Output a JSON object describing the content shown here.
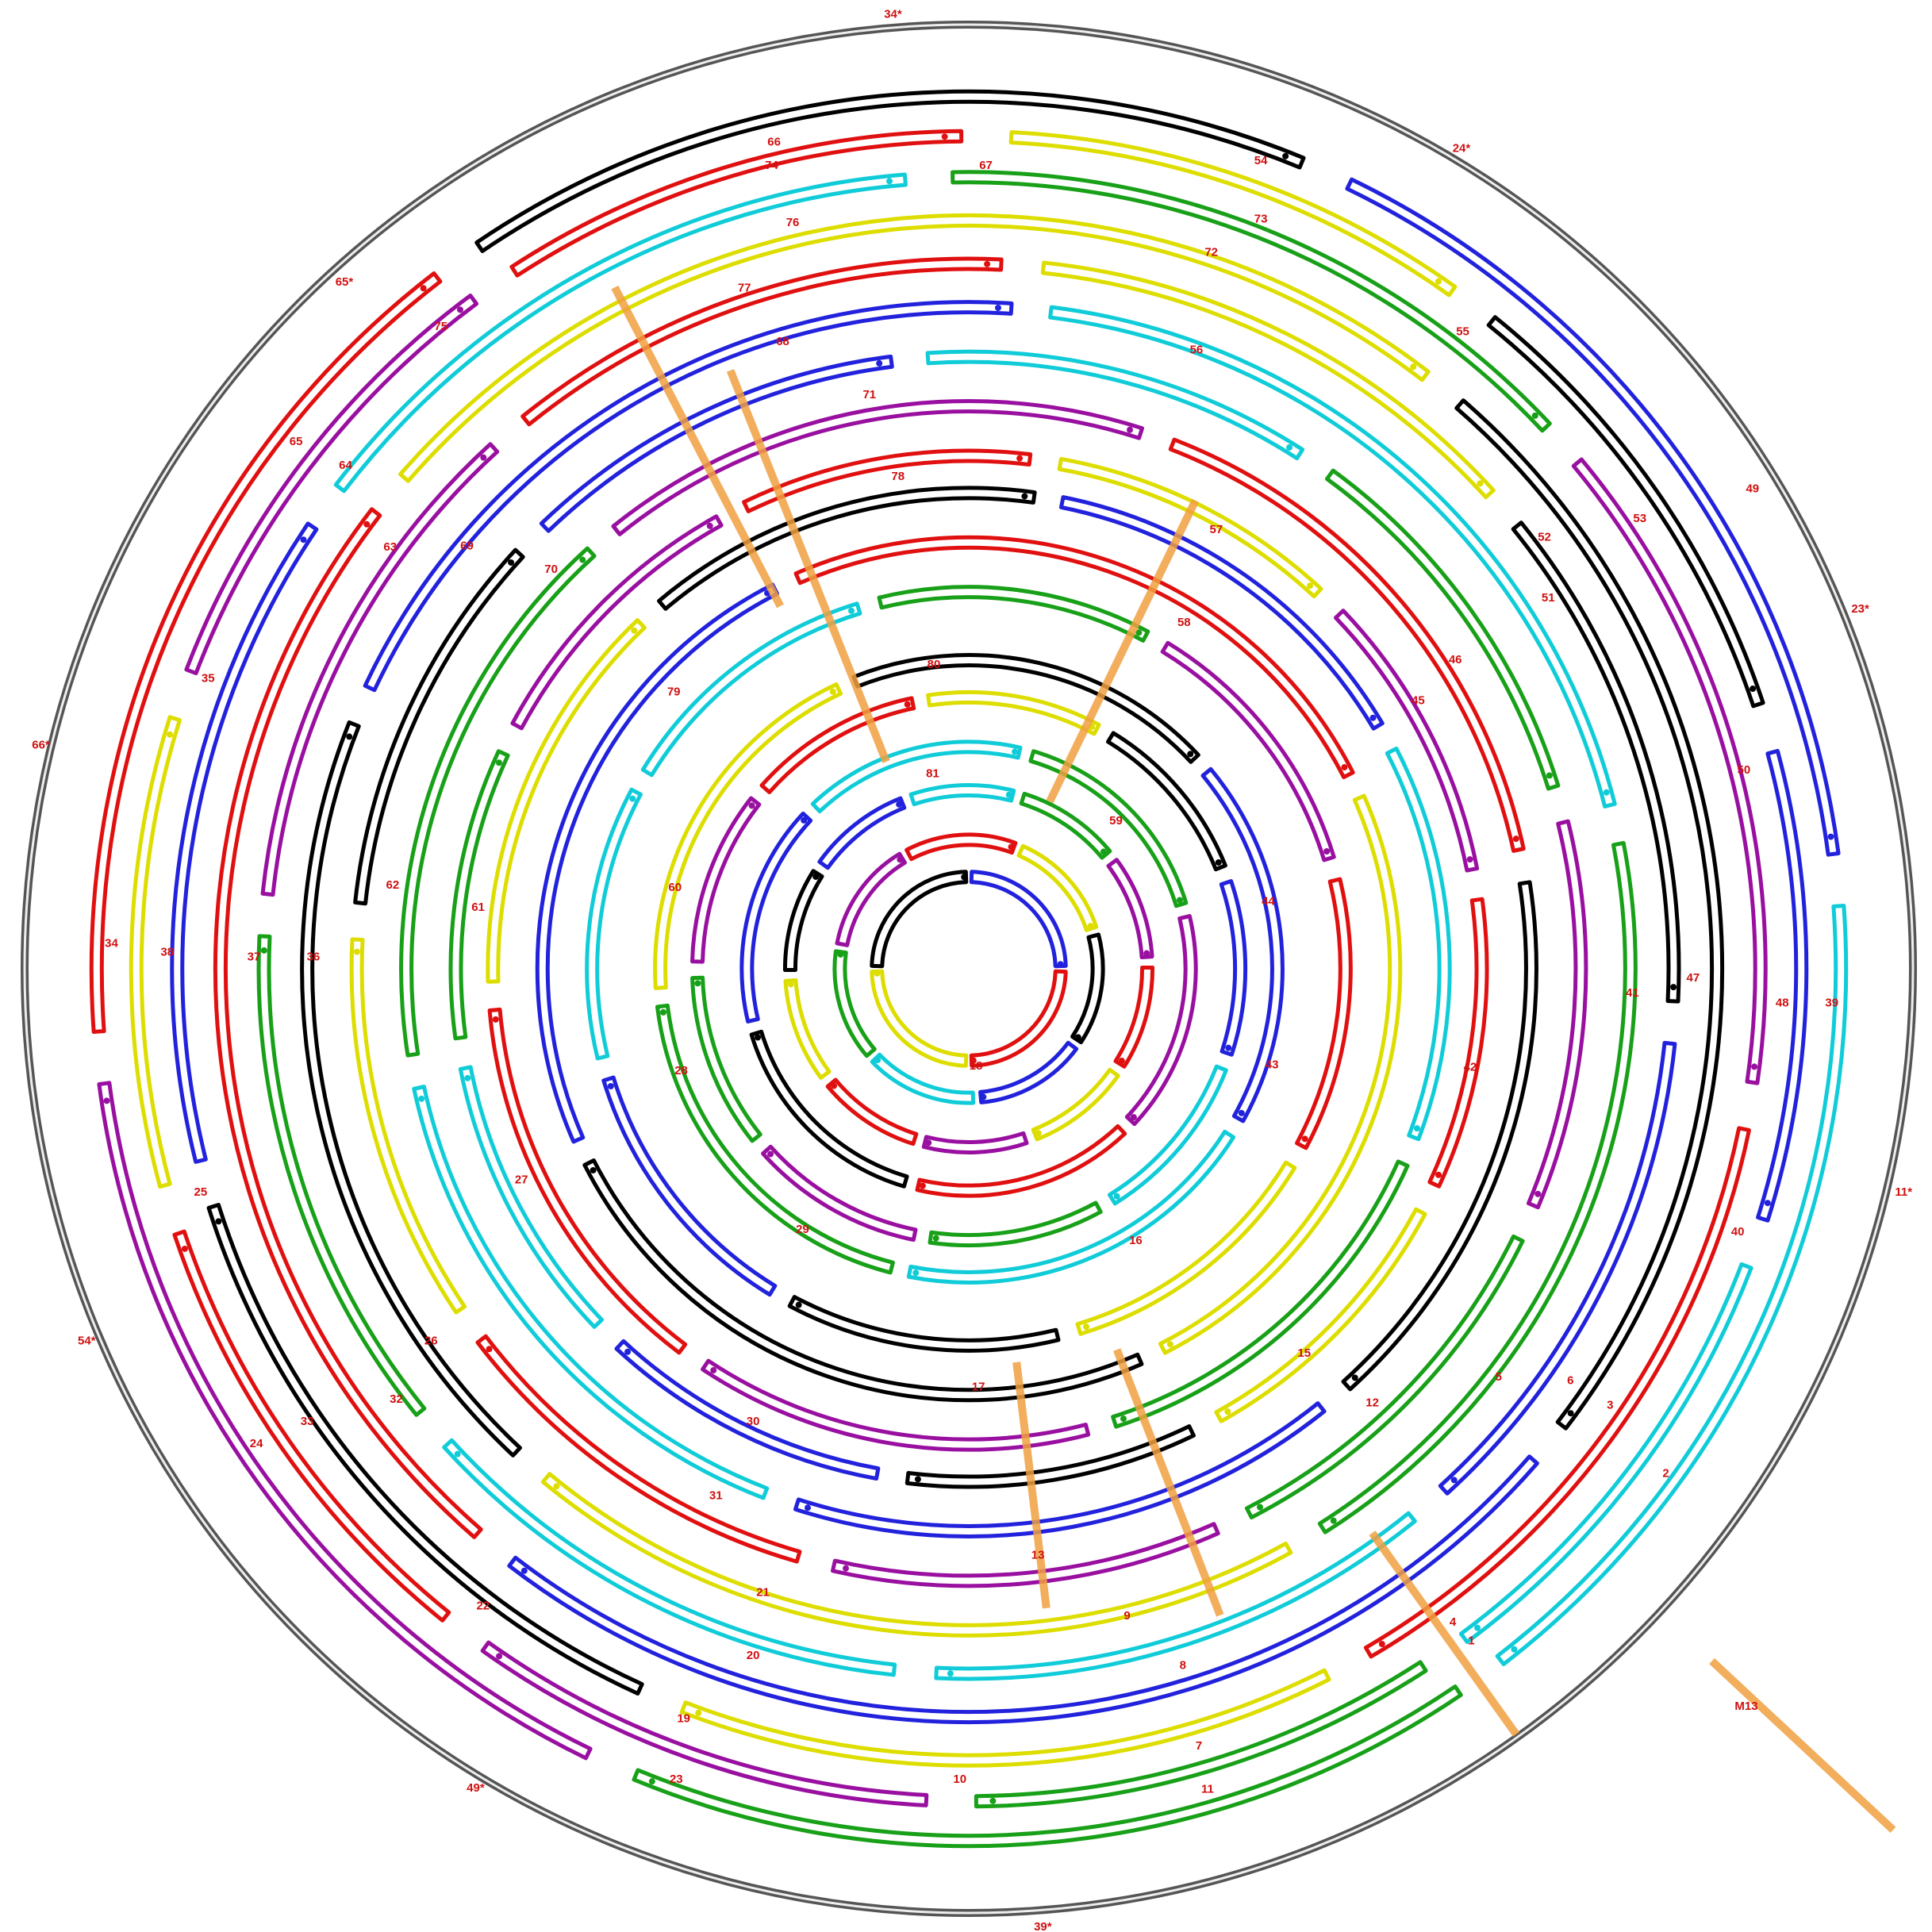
{
  "strands": [
    "1",
    "2",
    "3",
    "4",
    "5",
    "6",
    "7",
    "8",
    "9",
    "10",
    "11",
    "12",
    "13",
    "15",
    "16",
    "17",
    "18",
    "19",
    "20",
    "21",
    "22",
    "23",
    "24",
    "25",
    "26",
    "27",
    "28",
    "29",
    "30",
    "31",
    "32",
    "33",
    "34",
    "35",
    "36",
    "37",
    "38",
    "39",
    "40",
    "41",
    "42",
    "43",
    "44",
    "45",
    "46",
    "47",
    "48",
    "49",
    "50",
    "51",
    "52",
    "53",
    "54",
    "55",
    "56",
    "57",
    "58",
    "59",
    "60",
    "61",
    "62",
    "63",
    "64",
    "65",
    "66",
    "67",
    "68",
    "69",
    "70",
    "71",
    "72",
    "73",
    "74",
    "75",
    "76",
    "77",
    "78",
    "79",
    "80",
    "81"
  ],
  "crossovers": [
    "34*",
    "24*",
    "23*",
    "11*",
    "39*",
    "49*",
    "54*",
    "66*",
    "65*"
  ],
  "scaffold": "M13"
}
